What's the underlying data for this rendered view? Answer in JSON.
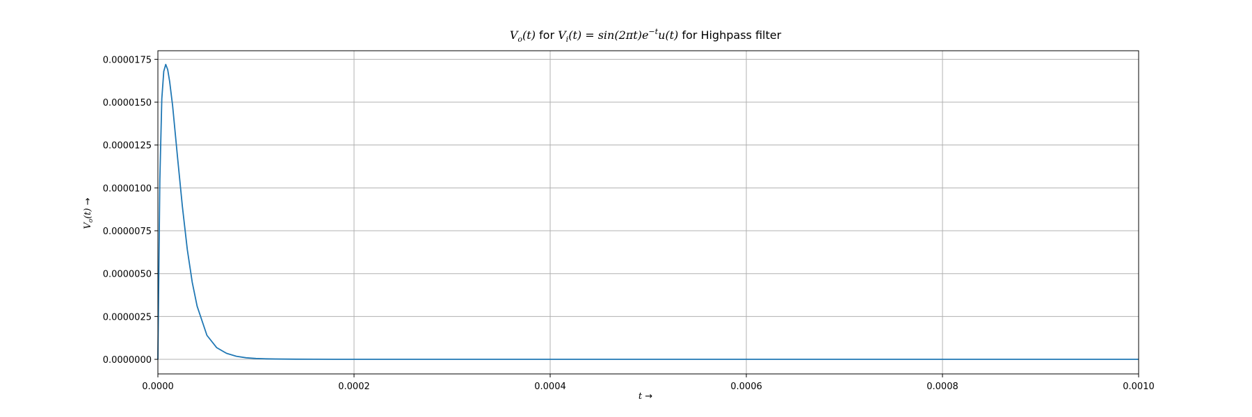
{
  "chart_data": {
    "type": "line",
    "title": {
      "v_o": "V",
      "o_sub": "o",
      "t_arg": "(t)",
      "for1": " for ",
      "v_i": "V",
      "i_sub": "i",
      "t_arg2": "(t) = ",
      "sin": "sin",
      "sin_arg": "(2πt)e",
      "exp": "−t",
      "u": "u(t)",
      "suffix": " for Highpass filter"
    },
    "xlabel": {
      "var": "t",
      "arrow": " →"
    },
    "ylabel": {
      "v": "V",
      "sub": "o",
      "arg": "(t)",
      "arrow": " →"
    },
    "xlim": [
      0,
      0.001
    ],
    "ylim": [
      -8.5e-07,
      1.8e-05
    ],
    "grid": true,
    "legend": "none",
    "xticks": [
      0.0,
      0.0002,
      0.0004,
      0.0006,
      0.0008,
      0.001
    ],
    "xtick_labels": [
      "0.0000",
      "0.0002",
      "0.0004",
      "0.0006",
      "0.0008",
      "0.0010"
    ],
    "yticks": [
      0.0,
      2.5e-06,
      5e-06,
      7.5e-06,
      1e-05,
      1.25e-05,
      1.5e-05,
      1.75e-05
    ],
    "ytick_labels": [
      "0.0000000",
      "0.0000025",
      "0.0000050",
      "0.0000075",
      "0.0000100",
      "0.0000125",
      "0.0000150",
      "0.0000175"
    ],
    "series": [
      {
        "color": "#1f77b4",
        "x": [
          0,
          2e-06,
          4e-06,
          6e-06,
          8e-06,
          1e-05,
          1.2e-05,
          1.5e-05,
          2e-05,
          2.5e-05,
          3e-05,
          3.5e-05,
          4e-05,
          5e-05,
          6e-05,
          7e-05,
          8e-05,
          9e-05,
          0.0001,
          0.00011,
          0.00012,
          0.00014,
          0.00016,
          0.00018,
          0.0002,
          0.00025,
          0.0003,
          0.0004,
          0.0005,
          0.0006,
          0.0007,
          0.0008,
          0.0009,
          0.001
        ],
        "y": [
          0,
          1.05e-05,
          1.52e-05,
          1.68e-05,
          1.72e-05,
          1.69e-05,
          1.62e-05,
          1.48e-05,
          1.18e-05,
          8.9e-06,
          6.4e-06,
          4.5e-06,
          3.1e-06,
          1.4e-06,
          6.8e-07,
          3.5e-07,
          1.8e-07,
          9e-08,
          5e-08,
          3e-08,
          2e-08,
          1e-08,
          5e-09,
          0,
          0,
          0,
          0,
          0,
          0,
          0,
          0,
          0,
          0,
          0
        ]
      }
    ]
  }
}
